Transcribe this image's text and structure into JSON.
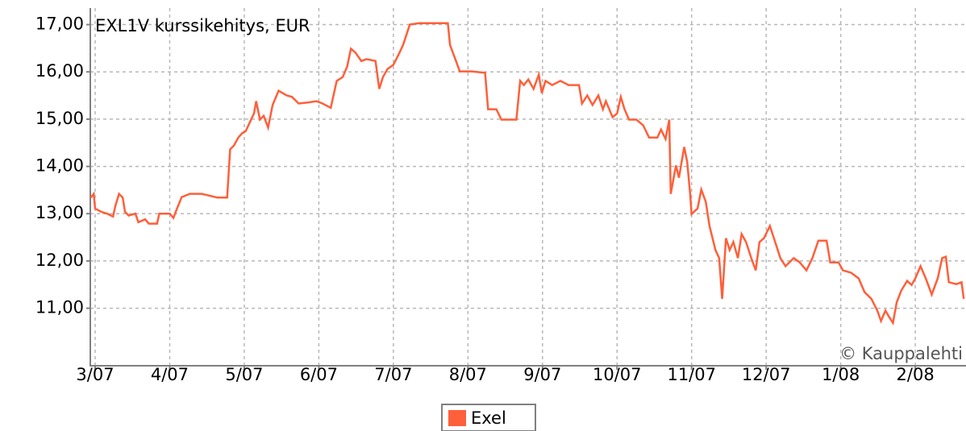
{
  "chart_data": {
    "type": "line",
    "title": "EXL1V kurssikehitys, EUR",
    "source": "© Kauppalehti",
    "x": [
      -0.06,
      -0.02,
      0,
      0.08,
      0.16,
      0.24,
      0.27,
      0.32,
      0.37,
      0.4,
      0.45,
      0.54,
      0.58,
      0.67,
      0.72,
      0.83,
      0.86,
      1.0,
      1.05,
      1.08,
      1.16,
      1.27,
      1.43,
      1.56,
      1.64,
      1.77,
      1.81,
      1.86,
      1.92,
      1.97,
      2.02,
      2.08,
      2.13,
      2.16,
      2.21,
      2.26,
      2.32,
      2.38,
      2.46,
      2.57,
      2.64,
      2.73,
      2.84,
      2.97,
      3.05,
      3.16,
      3.24,
      3.32,
      3.38,
      3.43,
      3.49,
      3.57,
      3.64,
      3.76,
      3.81,
      3.86,
      3.92,
      4.0,
      4.08,
      4.13,
      4.22,
      4.35,
      4.57,
      4.73,
      4.76,
      4.84,
      4.89,
      5.05,
      5.23,
      5.27,
      5.38,
      5.45,
      5.65,
      5.7,
      5.75,
      5.81,
      5.88,
      5.95,
      5.99,
      6.04,
      6.13,
      6.24,
      6.35,
      6.49,
      6.53,
      6.6,
      6.67,
      6.75,
      6.81,
      6.85,
      6.94,
      7.0,
      7.05,
      7.1,
      7.16,
      7.26,
      7.35,
      7.43,
      7.54,
      7.59,
      7.65,
      7.7,
      7.72,
      7.79,
      7.83,
      7.9,
      7.94,
      7.98,
      8.0,
      8.08,
      8.13,
      8.19,
      8.24,
      8.32,
      8.37,
      8.41,
      8.46,
      8.51,
      8.56,
      8.62,
      8.67,
      8.73,
      8.8,
      8.86,
      8.91,
      8.97,
      9.05,
      9.12,
      9.19,
      9.26,
      9.37,
      9.45,
      9.54,
      9.62,
      9.7,
      9.81,
      9.86,
      9.97,
      10.03,
      10.14,
      10.24,
      10.32,
      10.41,
      10.49,
      10.54,
      10.6,
      10.65,
      10.7,
      10.75,
      10.81,
      10.89,
      10.95,
      11.0,
      11.07,
      11.14,
      11.22,
      11.3,
      11.36,
      11.41,
      11.45,
      11.55,
      11.62,
      11.65
    ],
    "series": [
      {
        "name": "Exel",
        "color": "#ff5f3a",
        "values": [
          13.34,
          13.42,
          13.11,
          13.04,
          13.0,
          12.94,
          13.16,
          13.42,
          13.34,
          13.04,
          12.96,
          13.0,
          12.82,
          12.88,
          12.79,
          12.79,
          13.0,
          13.0,
          12.91,
          13.04,
          13.35,
          13.42,
          13.42,
          13.37,
          13.34,
          13.34,
          14.36,
          14.44,
          14.61,
          14.7,
          14.75,
          14.95,
          15.12,
          15.38,
          14.99,
          15.07,
          14.82,
          15.3,
          15.6,
          15.5,
          15.47,
          15.33,
          15.35,
          15.38,
          15.33,
          15.24,
          15.81,
          15.89,
          16.11,
          16.49,
          16.41,
          16.23,
          16.27,
          16.23,
          15.64,
          15.89,
          16.06,
          16.15,
          16.4,
          16.57,
          17.0,
          17.03,
          17.03,
          17.03,
          16.57,
          16.23,
          16.01,
          16.01,
          15.98,
          15.21,
          15.21,
          14.99,
          14.99,
          15.81,
          15.72,
          15.84,
          15.64,
          15.94,
          15.55,
          15.81,
          15.72,
          15.81,
          15.72,
          15.72,
          15.33,
          15.5,
          15.3,
          15.5,
          15.21,
          15.38,
          15.04,
          15.12,
          15.47,
          15.21,
          14.99,
          14.99,
          14.87,
          14.61,
          14.61,
          14.78,
          14.58,
          14.99,
          13.42,
          14.02,
          13.76,
          14.41,
          14.1,
          13.42,
          12.99,
          13.11,
          13.51,
          13.25,
          12.74,
          12.23,
          12.06,
          11.2,
          12.48,
          12.23,
          12.4,
          12.06,
          12.57,
          12.4,
          12.06,
          11.8,
          12.4,
          12.48,
          12.74,
          12.4,
          12.06,
          11.89,
          12.06,
          11.97,
          11.8,
          12.06,
          12.43,
          12.43,
          11.97,
          11.97,
          11.8,
          11.75,
          11.63,
          11.34,
          11.2,
          10.95,
          10.73,
          10.95,
          10.81,
          10.69,
          11.12,
          11.37,
          11.58,
          11.49,
          11.63,
          11.89,
          11.63,
          11.29,
          11.63,
          12.06,
          12.09,
          11.55,
          11.51,
          11.55,
          11.2
        ]
      }
    ],
    "xlim": [
      -0.065,
      11.68
    ],
    "xticks": [
      {
        "value": 0,
        "label": "3/07"
      },
      {
        "value": 1,
        "label": "4/07"
      },
      {
        "value": 2,
        "label": "5/07"
      },
      {
        "value": 3,
        "label": "6/07"
      },
      {
        "value": 4,
        "label": "7/07"
      },
      {
        "value": 5,
        "label": "8/07"
      },
      {
        "value": 6,
        "label": "9/07"
      },
      {
        "value": 7,
        "label": "10/07"
      },
      {
        "value": 8,
        "label": "11/07"
      },
      {
        "value": 9,
        "label": "12/07"
      },
      {
        "value": 10,
        "label": "1/08"
      },
      {
        "value": 11,
        "label": "2/08"
      }
    ],
    "ylim": [
      9.8,
      17.35
    ],
    "yticks": [
      {
        "value": 11,
        "label": "11,00"
      },
      {
        "value": 12,
        "label": "12,00"
      },
      {
        "value": 13,
        "label": "13,00"
      },
      {
        "value": 14,
        "label": "14,00"
      },
      {
        "value": 15,
        "label": "15,00"
      },
      {
        "value": 16,
        "label": "16,00"
      },
      {
        "value": 17,
        "label": "17,00"
      }
    ],
    "grid": true
  }
}
